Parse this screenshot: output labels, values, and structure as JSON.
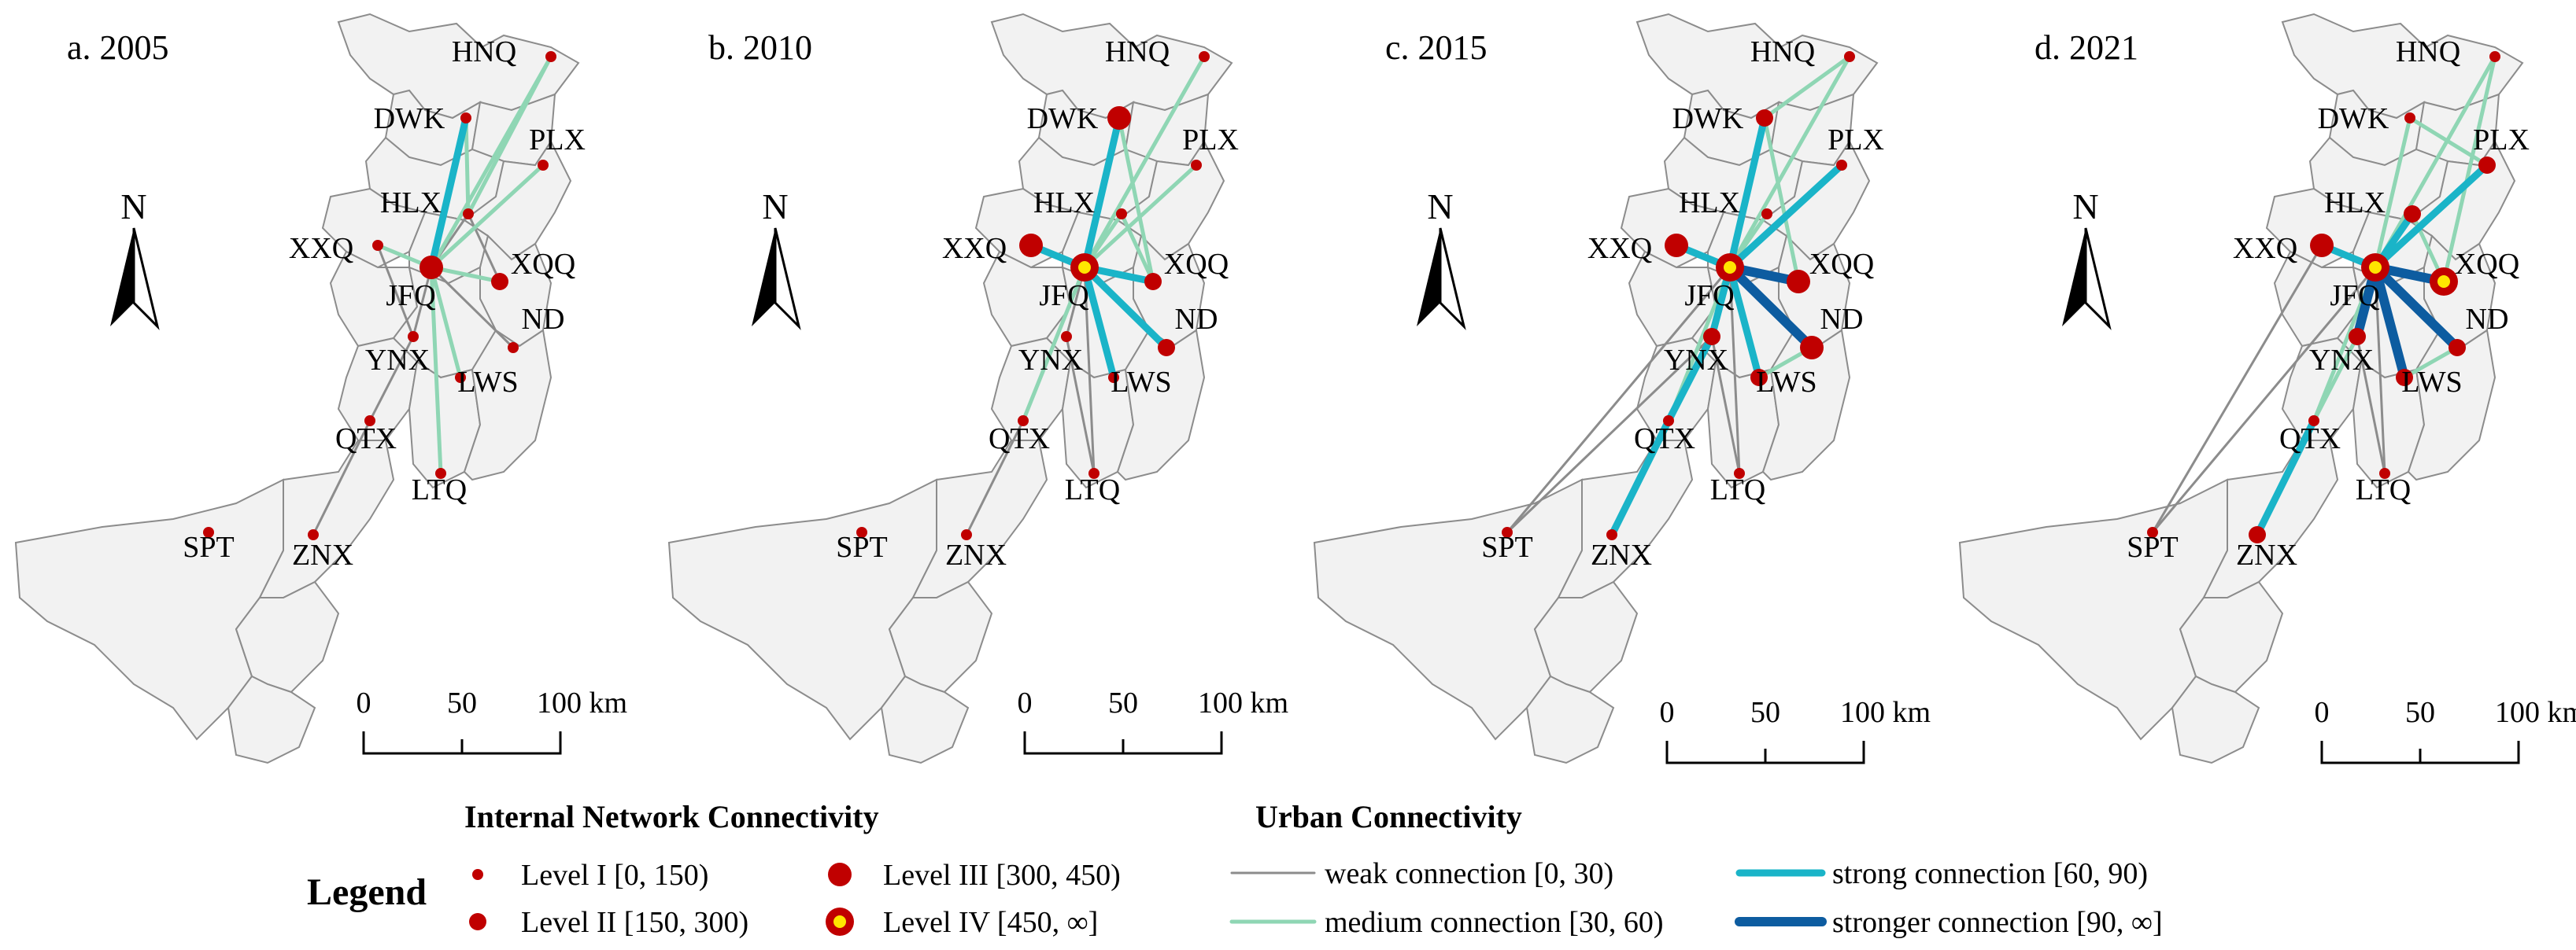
{
  "panels": [
    {
      "title": "a. 2005",
      "levels": {
        "HNQ": 1,
        "DWK": 1,
        "PLX": 1,
        "HLX": 1,
        "XXQ": 1,
        "JFQ": 3,
        "XQQ": 2,
        "ND": 1,
        "YNX": 1,
        "LWS": 1,
        "QTX": 1,
        "LTQ": 1,
        "SPT": 1,
        "ZNX": 1
      },
      "links": [
        [
          "JFQ",
          "DWK",
          3
        ],
        [
          "JFQ",
          "XQQ",
          2
        ],
        [
          "JFQ",
          "HNQ",
          2
        ],
        [
          "JFQ",
          "PLX",
          2
        ],
        [
          "JFQ",
          "XXQ",
          2
        ],
        [
          "JFQ",
          "LWS",
          2
        ],
        [
          "JFQ",
          "LTQ",
          2
        ],
        [
          "DWK",
          "HLX",
          2
        ],
        [
          "HLX",
          "HNQ",
          2
        ],
        [
          "HLX",
          "XQQ",
          1
        ],
        [
          "JFQ",
          "HLX",
          1
        ],
        [
          "JFQ",
          "YNX",
          1
        ],
        [
          "YNX",
          "QTX",
          1
        ],
        [
          "QTX",
          "ZNX",
          1
        ],
        [
          "JFQ",
          "ND",
          1
        ],
        [
          "XXQ",
          "YNX",
          1
        ]
      ]
    },
    {
      "title": "b. 2010",
      "levels": {
        "HNQ": 1,
        "DWK": 3,
        "PLX": 1,
        "HLX": 1,
        "XXQ": 3,
        "JFQ": 4,
        "XQQ": 2,
        "ND": 2,
        "YNX": 1,
        "LWS": 1,
        "QTX": 1,
        "LTQ": 1,
        "SPT": 1,
        "ZNX": 1
      },
      "links": [
        [
          "JFQ",
          "DWK",
          3
        ],
        [
          "JFQ",
          "XXQ",
          3
        ],
        [
          "JFQ",
          "XQQ",
          3
        ],
        [
          "JFQ",
          "ND",
          3
        ],
        [
          "JFQ",
          "LWS",
          3
        ],
        [
          "JFQ",
          "HNQ",
          2
        ],
        [
          "JFQ",
          "PLX",
          2
        ],
        [
          "HLX",
          "XQQ",
          2
        ],
        [
          "DWK",
          "XQQ",
          2
        ],
        [
          "JFQ",
          "QTX",
          2
        ],
        [
          "JFQ",
          "HLX",
          2
        ],
        [
          "JFQ",
          "YNX",
          1
        ],
        [
          "YNX",
          "LTQ",
          1
        ],
        [
          "QTX",
          "ZNX",
          1
        ],
        [
          "JFQ",
          "LTQ",
          1
        ]
      ]
    },
    {
      "title": "c. 2015",
      "levels": {
        "HNQ": 1,
        "DWK": 2,
        "PLX": 1,
        "HLX": 1,
        "XXQ": 3,
        "JFQ": 4,
        "XQQ": 3,
        "ND": 3,
        "YNX": 2,
        "LWS": 2,
        "QTX": 1,
        "LTQ": 1,
        "SPT": 1,
        "ZNX": 1
      },
      "links": [
        [
          "JFQ",
          "ND",
          4
        ],
        [
          "JFQ",
          "XQQ",
          4
        ],
        [
          "JFQ",
          "DWK",
          3
        ],
        [
          "JFQ",
          "XXQ",
          3
        ],
        [
          "JFQ",
          "PLX",
          3
        ],
        [
          "JFQ",
          "LWS",
          3
        ],
        [
          "JFQ",
          "YNX",
          3
        ],
        [
          "YNX",
          "QTX",
          3
        ],
        [
          "QTX",
          "ZNX",
          3
        ],
        [
          "JFQ",
          "HNQ",
          2
        ],
        [
          "DWK",
          "HNQ",
          2
        ],
        [
          "JFQ",
          "HLX",
          2
        ],
        [
          "LWS",
          "ND",
          2
        ],
        [
          "XQQ",
          "DWK",
          2
        ],
        [
          "JFQ",
          "QTX",
          2
        ],
        [
          "JFQ",
          "SPT",
          1
        ],
        [
          "YNX",
          "SPT",
          1
        ],
        [
          "JFQ",
          "LTQ",
          1
        ],
        [
          "YNX",
          "LTQ",
          1
        ]
      ]
    },
    {
      "title": "d. 2021",
      "levels": {
        "HNQ": 1,
        "DWK": 1,
        "PLX": 2,
        "HLX": 2,
        "XXQ": 3,
        "JFQ": 4,
        "XQQ": 4,
        "ND": 2,
        "YNX": 2,
        "LWS": 2,
        "QTX": 1,
        "LTQ": 1,
        "SPT": 1,
        "ZNX": 2
      },
      "links": [
        [
          "JFQ",
          "XQQ",
          4
        ],
        [
          "JFQ",
          "ND",
          4
        ],
        [
          "JFQ",
          "LWS",
          4
        ],
        [
          "JFQ",
          "YNX",
          4
        ],
        [
          "JFQ",
          "XXQ",
          3
        ],
        [
          "JFQ",
          "PLX",
          3
        ],
        [
          "JFQ",
          "HLX",
          3
        ],
        [
          "QTX",
          "ZNX",
          3
        ],
        [
          "JFQ",
          "DWK",
          2
        ],
        [
          "JFQ",
          "HNQ",
          2
        ],
        [
          "DWK",
          "PLX",
          2
        ],
        [
          "LWS",
          "ND",
          2
        ],
        [
          "YNX",
          "QTX",
          2
        ],
        [
          "HLX",
          "XQQ",
          2
        ],
        [
          "JFQ",
          "QTX",
          2
        ],
        [
          "XQQ",
          "HNQ",
          2
        ],
        [
          "JFQ",
          "SPT",
          1
        ],
        [
          "XXQ",
          "SPT",
          1
        ],
        [
          "YNX",
          "LTQ",
          1
        ],
        [
          "JFQ",
          "LTQ",
          1
        ],
        [
          "YNX",
          "ZNX",
          1
        ]
      ]
    }
  ],
  "scale_bar": {
    "ticks": [
      "0",
      "50",
      "100 km"
    ]
  },
  "north_arrow": {
    "label": "N",
    "icon": "north-arrow-icon"
  },
  "legend": {
    "title": "Legend",
    "node_heading": "Internal Network Connectivity",
    "edge_heading": "Urban Connectivity",
    "node_levels": [
      {
        "label": "Level I [0, 150)",
        "level": 1
      },
      {
        "label": "Level II [150, 300)",
        "level": 2
      },
      {
        "label": "Level III [300, 450)",
        "level": 3
      },
      {
        "label": "Level IV [450, ∞]",
        "level": 4
      }
    ],
    "edge_levels": [
      {
        "label": "weak connection [0, 30)",
        "level": 1
      },
      {
        "label": "medium connection [30, 60)",
        "level": 2
      },
      {
        "label": "strong connection [60, 90)",
        "level": 3
      },
      {
        "label": "stronger connection [90, ∞]",
        "level": 4
      }
    ]
  },
  "colors": {
    "region_fill": "#f2f2f2",
    "region_stroke": "#8c8c8c",
    "node_red": "#c00000",
    "node_iv_ring": "#c00000",
    "node_iv_center": "#ffe600",
    "weak_edge": "#8c8c8c",
    "medium_edge": "#8fd6b4",
    "strong_edge": "#1ab4c8",
    "stronger_edge": "#0d5ca0"
  }
}
